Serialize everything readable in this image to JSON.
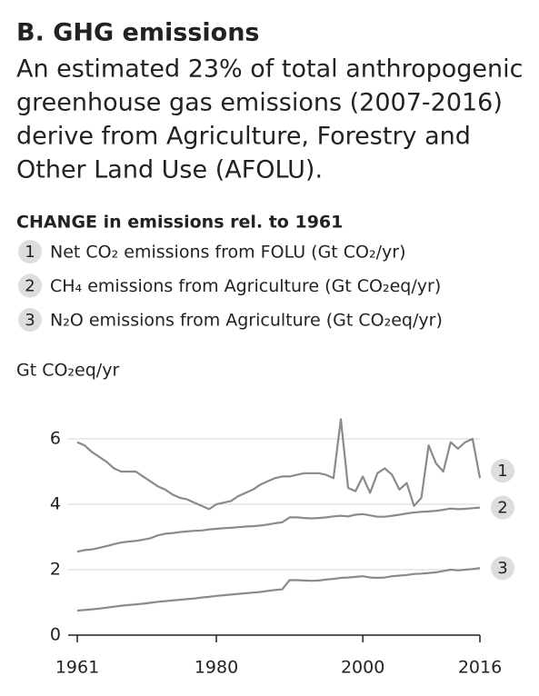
{
  "chart_data": {
    "type": "line",
    "title": "B. GHG emissions",
    "subtitle": [
      "An estimated 23% of total anthropogenic",
      "greenhouse gas emissions (2007-2016)",
      "derive from Agriculture, Forestry and",
      "Other Land Use (AFOLU)."
    ],
    "legend_title": "CHANGE in emissions rel. to 1961",
    "y_label": "Gt CO₂eq/yr",
    "x": [
      1961,
      1962,
      1963,
      1964,
      1965,
      1966,
      1967,
      1968,
      1969,
      1970,
      1971,
      1972,
      1973,
      1974,
      1975,
      1976,
      1977,
      1978,
      1979,
      1980,
      1981,
      1982,
      1983,
      1984,
      1985,
      1986,
      1987,
      1988,
      1989,
      1990,
      1991,
      1992,
      1993,
      1994,
      1995,
      1996,
      1997,
      1998,
      1999,
      2000,
      2001,
      2002,
      2003,
      2004,
      2005,
      2006,
      2007,
      2008,
      2009,
      2010,
      2011,
      2012,
      2013,
      2014,
      2015,
      2016
    ],
    "series": [
      {
        "name": "Net CO₂ emissions from FOLU (Gt CO₂/yr)",
        "label": "1",
        "color": "#8a8a8a",
        "values": [
          5.9,
          5.8,
          5.6,
          5.45,
          5.3,
          5.1,
          5.0,
          5.0,
          5.0,
          4.85,
          4.7,
          4.55,
          4.45,
          4.3,
          4.2,
          4.15,
          4.05,
          3.95,
          3.85,
          4.0,
          4.05,
          4.1,
          4.25,
          4.35,
          4.45,
          4.6,
          4.7,
          4.8,
          4.85,
          4.85,
          4.9,
          4.95,
          4.95,
          4.95,
          4.9,
          4.8,
          6.6,
          4.5,
          4.4,
          4.85,
          4.35,
          4.95,
          5.1,
          4.9,
          4.45,
          4.65,
          3.95,
          4.2,
          5.8,
          5.25,
          5.0,
          5.9,
          5.7,
          5.9,
          6.0,
          4.8
        ]
      },
      {
        "name": "CH₄ emissions from Agriculture (Gt CO₂eq/yr)",
        "label": "2",
        "color": "#8a8a8a",
        "values": [
          2.55,
          2.6,
          2.62,
          2.67,
          2.72,
          2.78,
          2.83,
          2.86,
          2.88,
          2.92,
          2.96,
          3.05,
          3.1,
          3.12,
          3.15,
          3.17,
          3.19,
          3.2,
          3.23,
          3.25,
          3.27,
          3.28,
          3.3,
          3.32,
          3.33,
          3.35,
          3.38,
          3.42,
          3.45,
          3.6,
          3.6,
          3.58,
          3.57,
          3.58,
          3.6,
          3.63,
          3.65,
          3.63,
          3.68,
          3.7,
          3.66,
          3.62,
          3.62,
          3.65,
          3.68,
          3.72,
          3.75,
          3.77,
          3.78,
          3.8,
          3.83,
          3.87,
          3.85,
          3.86,
          3.88,
          3.9
        ]
      },
      {
        "name": "N₂O emissions from Agriculture (Gt CO₂eq/yr)",
        "label": "3",
        "color": "#8a8a8a",
        "values": [
          0.75,
          0.77,
          0.79,
          0.81,
          0.84,
          0.87,
          0.9,
          0.92,
          0.94,
          0.96,
          0.99,
          1.02,
          1.04,
          1.06,
          1.08,
          1.1,
          1.12,
          1.15,
          1.17,
          1.2,
          1.22,
          1.24,
          1.26,
          1.28,
          1.3,
          1.32,
          1.35,
          1.38,
          1.4,
          1.68,
          1.68,
          1.67,
          1.66,
          1.67,
          1.7,
          1.72,
          1.75,
          1.76,
          1.78,
          1.8,
          1.76,
          1.75,
          1.76,
          1.8,
          1.82,
          1.84,
          1.87,
          1.88,
          1.9,
          1.92,
          1.96,
          2.0,
          1.98,
          2.0,
          2.02,
          2.05
        ]
      }
    ],
    "xlim": [
      1961,
      2016
    ],
    "xticks": [
      1961,
      1980,
      2000,
      2016
    ],
    "ylim": [
      0,
      7
    ],
    "yticks": [
      0,
      2,
      4,
      6
    ],
    "grid": true
  }
}
